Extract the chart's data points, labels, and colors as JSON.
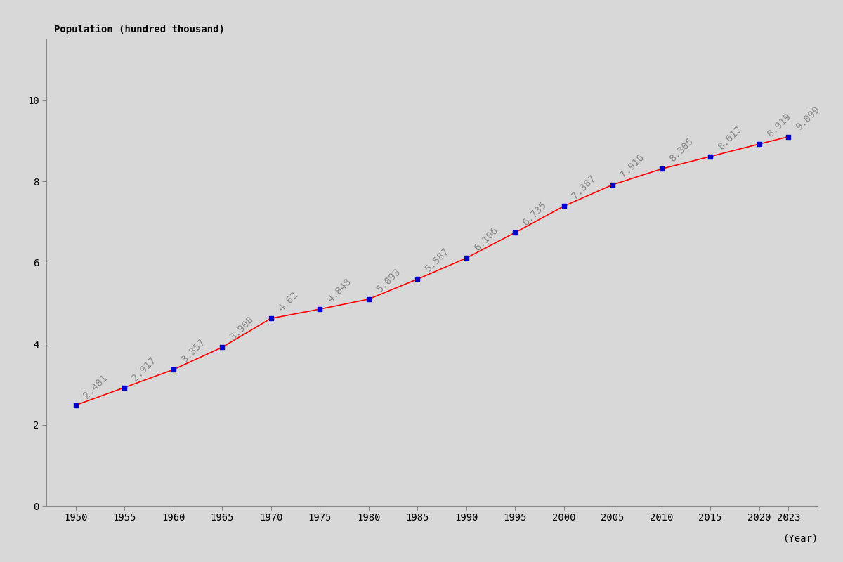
{
  "years": [
    1950,
    1955,
    1960,
    1965,
    1970,
    1975,
    1980,
    1985,
    1990,
    1995,
    2000,
    2005,
    2010,
    2015,
    2020,
    2023
  ],
  "population": [
    2.481,
    2.917,
    3.357,
    3.908,
    4.62,
    4.848,
    5.093,
    5.587,
    6.106,
    6.735,
    7.387,
    7.916,
    8.305,
    8.612,
    8.919,
    9.099
  ],
  "labels": [
    "2.481",
    "2.917",
    "3.357",
    "3.908",
    "4.62",
    "4.848",
    "5.093",
    "5.587",
    "6.106",
    "6.735",
    "7.387",
    "7.916",
    "8.305",
    "8.612",
    "8.919",
    "9.099"
  ],
  "line_color": "#ff0000",
  "dot_color": "#0000cc",
  "bg_color": "#d8d8d8",
  "ylabel": "Population (hundred thousand)",
  "xlabel": "(Year)",
  "yticks": [
    0,
    2,
    4,
    6,
    8,
    10
  ],
  "xticks": [
    1950,
    1955,
    1960,
    1965,
    1970,
    1975,
    1980,
    1985,
    1990,
    1995,
    2000,
    2005,
    2010,
    2015,
    2020,
    2023
  ],
  "xlim": [
    1947,
    2026
  ],
  "ylim": [
    0,
    11.5
  ],
  "label_color": "#888888",
  "label_fontsize": 10,
  "tick_fontsize": 10
}
